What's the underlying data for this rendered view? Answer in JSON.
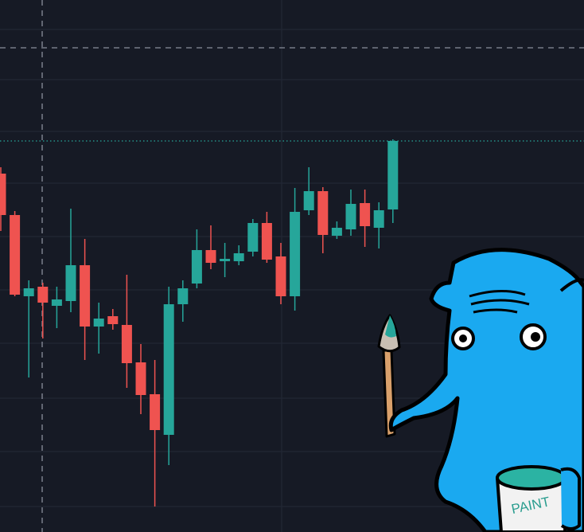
{
  "chart_data": {
    "type": "candlestick",
    "ylim": [
      0,
      668
    ],
    "up_color": "#26a69a",
    "down_color": "#ef5350",
    "open": [
      450,
      398,
      296,
      308,
      284,
      290,
      335,
      258,
      271,
      260,
      213,
      173,
      122,
      286,
      312,
      354,
      340,
      340,
      352,
      388,
      346,
      296,
      404,
      428,
      372,
      380,
      413,
      382,
      405
    ],
    "close": [
      398,
      298,
      306,
      288,
      292,
      335,
      258,
      268,
      261,
      212,
      172,
      128,
      286,
      306,
      354,
      338,
      343,
      350,
      388,
      342,
      296,
      402,
      428,
      373,
      382,
      412,
      384,
      404,
      491
    ],
    "high": [
      458,
      403,
      316,
      313,
      308,
      406,
      368,
      288,
      280,
      323,
      236,
      216,
      308,
      316,
      380,
      385,
      363,
      360,
      393,
      402,
      363,
      432,
      458,
      433,
      390,
      430,
      430,
      414,
      493
    ],
    "low": [
      378,
      296,
      194,
      243,
      256,
      276,
      216,
      224,
      254,
      181,
      148,
      32,
      84,
      264,
      306,
      330,
      320,
      335,
      346,
      338,
      286,
      278,
      398,
      350,
      368,
      372,
      358,
      356,
      388
    ],
    "illustration_text": "PAINT"
  }
}
